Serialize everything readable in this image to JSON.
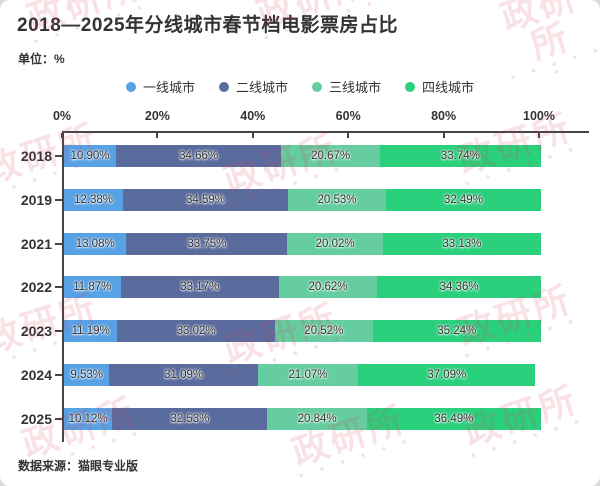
{
  "card": {
    "title": "2018—2025年分线城市春节档电影票房占比",
    "unit_label": "单位：%",
    "source": "数据来源：猫眼专业版",
    "watermark_text": "政研所"
  },
  "chart_data": {
    "type": "bar",
    "orientation": "horizontal",
    "stacked": true,
    "title": "2018—2025年分线城市春节档电影票房占比",
    "unit": "%",
    "categories": [
      "2018",
      "2019",
      "2021",
      "2022",
      "2023",
      "2024",
      "2025"
    ],
    "series": [
      {
        "name": "一线城市",
        "color": "#57A1E5",
        "values": [
          10.9,
          12.38,
          13.08,
          11.87,
          11.19,
          9.53,
          10.12
        ]
      },
      {
        "name": "二线城市",
        "color": "#5A6C9E",
        "values": [
          34.66,
          34.59,
          33.75,
          33.17,
          33.02,
          31.09,
          32.53
        ]
      },
      {
        "name": "三线城市",
        "color": "#65CDA0",
        "values": [
          20.67,
          20.53,
          20.02,
          20.62,
          20.52,
          21.07,
          20.84
        ]
      },
      {
        "name": "四线城市",
        "color": "#2BD07D",
        "values": [
          33.74,
          32.49,
          33.13,
          34.36,
          35.24,
          37.09,
          36.49
        ]
      }
    ],
    "x_axis": {
      "ticks": [
        "0%",
        "20%",
        "40%",
        "60%",
        "80%",
        "100%"
      ],
      "range": [
        0,
        100
      ]
    },
    "value_suffix": "%",
    "legend_position": "top",
    "grid": false
  }
}
